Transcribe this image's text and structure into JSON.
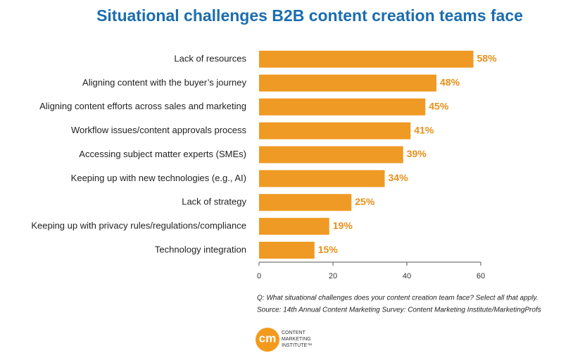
{
  "chart_data": {
    "type": "bar",
    "orientation": "horizontal",
    "title": "Situational challenges B2B content creation teams face",
    "categories": [
      "Lack of resources",
      "Aligning content with the buyer’s journey",
      "Aligning content efforts across sales and marketing",
      "Workflow issues/content approvals process",
      "Accessing subject matter experts (SMEs)",
      "Keeping up with new technologies (e.g., AI)",
      "Lack of strategy",
      "Keeping up with privacy rules/regulations/compliance",
      "Technology integration"
    ],
    "values": [
      58,
      48,
      45,
      41,
      39,
      34,
      25,
      19,
      15
    ],
    "value_labels": [
      "58%",
      "48%",
      "45%",
      "41%",
      "39%",
      "34%",
      "25%",
      "19%",
      "15%"
    ],
    "color": "#ef9a24",
    "xlim": [
      0,
      60
    ],
    "xticks": [
      0,
      20,
      40,
      60
    ],
    "grid": false,
    "notes": [
      "Q: What situational challenges does your content creation team face? Select all that apply.",
      "Source: 14th Annual Content Marketing Survey: Content Marketing Institute/MarketingProfs"
    ]
  },
  "logo": {
    "mark": "cm",
    "lines": [
      "CONTENT",
      "MARKETING",
      "INSTITUTE™"
    ]
  }
}
